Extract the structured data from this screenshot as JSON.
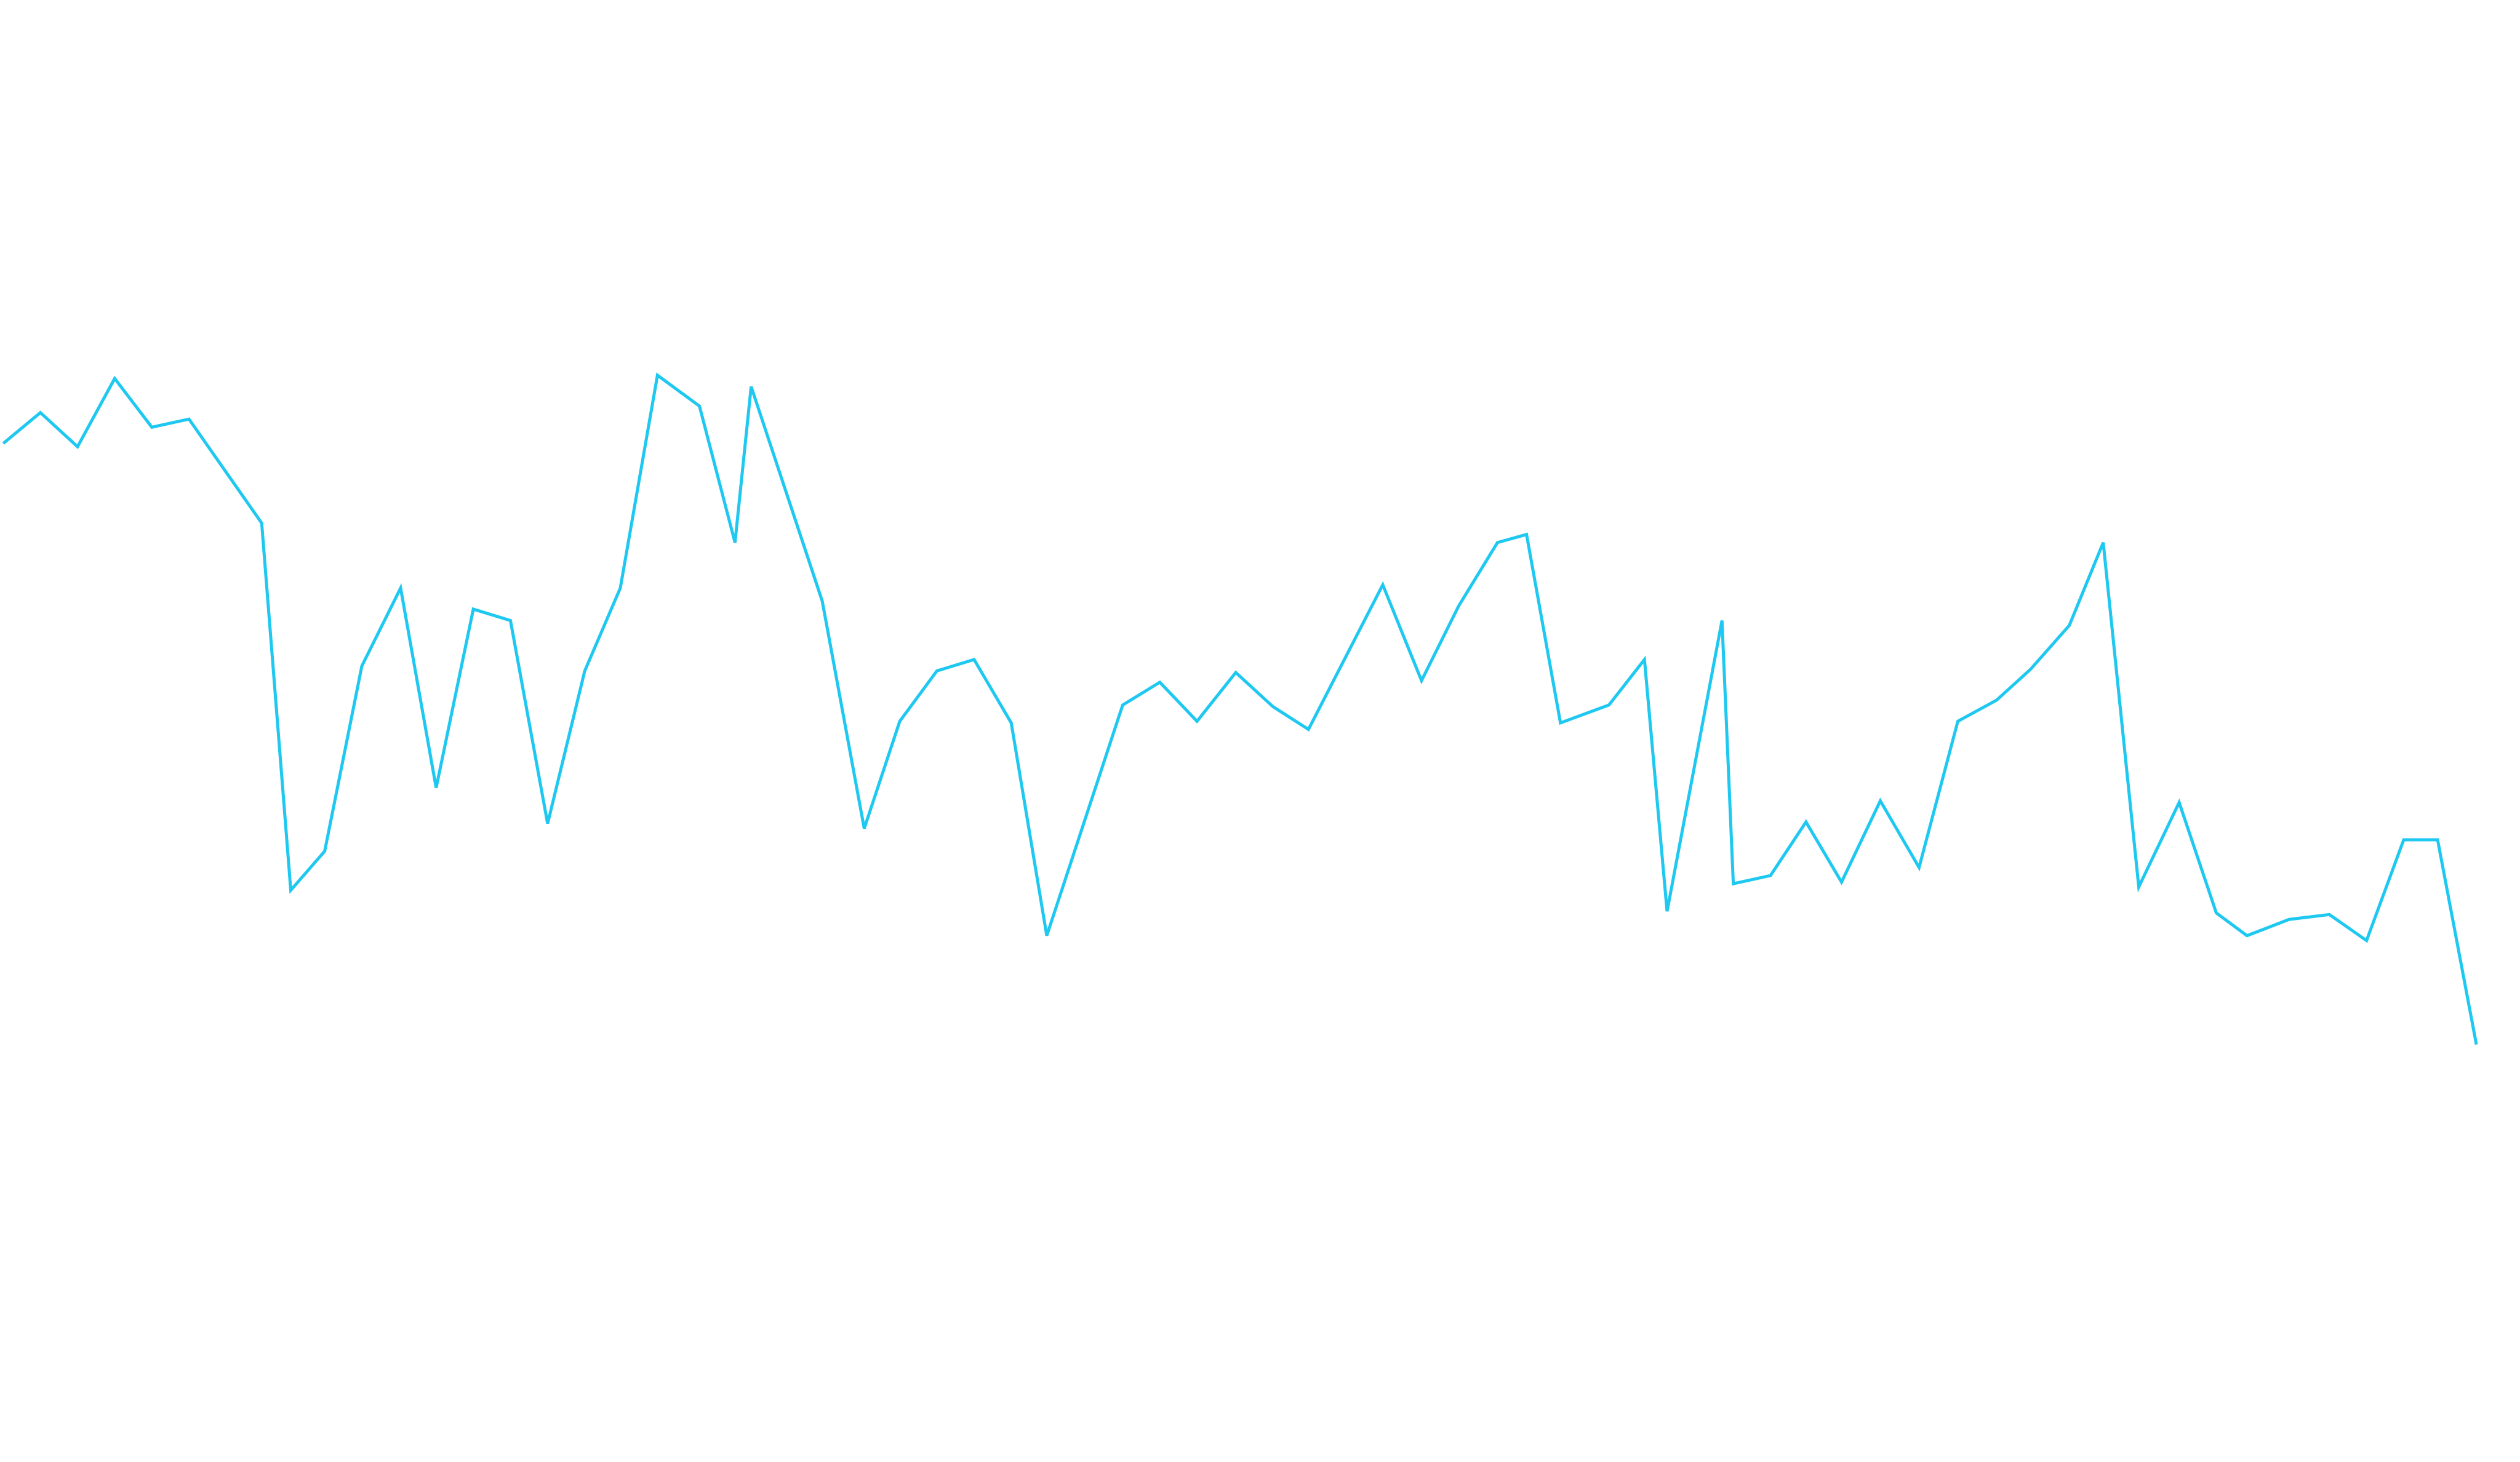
{
  "chart_data": {
    "type": "line",
    "color": "#1ec8f0",
    "xlim": [
      0,
      1560
    ],
    "ylim": [
      0,
      900
    ],
    "x": [
      2,
      25,
      48,
      71,
      94,
      117,
      162,
      180,
      201,
      224,
      248,
      270,
      293,
      316,
      339,
      362,
      384,
      407,
      433,
      455,
      465,
      509,
      535,
      557,
      580,
      603,
      626,
      648,
      695,
      718,
      741,
      765,
      788,
      810,
      856,
      880,
      903,
      927,
      945,
      966,
      996,
      1018,
      1032,
      1066,
      1073,
      1096,
      1118,
      1140,
      1164,
      1188,
      1212,
      1236,
      1257,
      1281,
      1302,
      1324,
      1349,
      1372,
      1391,
      1417,
      1442,
      1465,
      1488,
      1509,
      1533
    ],
    "values": [
      627,
      646,
      625,
      667,
      637,
      642,
      578,
      352,
      376,
      490,
      538,
      415,
      525,
      518,
      393,
      487,
      538,
      669,
      650,
      566,
      662,
      530,
      390,
      456,
      487,
      494,
      455,
      324,
      466,
      480,
      456,
      486,
      465,
      451,
      540,
      481,
      527,
      566,
      571,
      455,
      466,
      494,
      339,
      518,
      356,
      361,
      394,
      357,
      407,
      366,
      456,
      469,
      488,
      515,
      566,
      354,
      406,
      338,
      324,
      334,
      337,
      321,
      383,
      383,
      257
    ]
  }
}
